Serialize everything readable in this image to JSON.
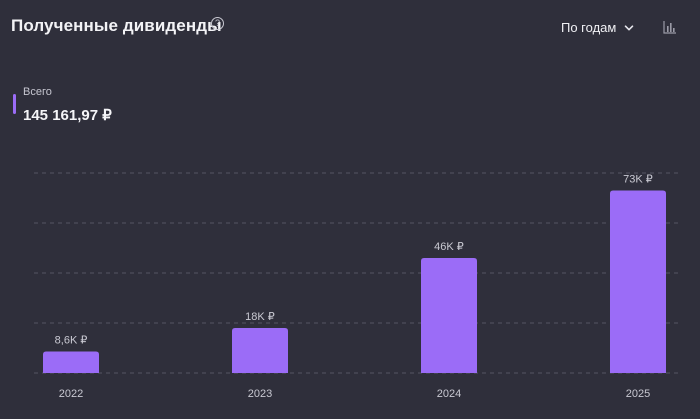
{
  "header": {
    "title": "Полученные дивиденды",
    "help_icon": "question-circle-icon",
    "period_label": "По годам",
    "period_icon": "chevron-down-icon",
    "chart_toggle_icon": "bar-chart-icon"
  },
  "summary": {
    "label": "Всего",
    "value": "145 161,97 ₽"
  },
  "colors": {
    "background": "#2f2f3b",
    "bar": "#9b6cf7",
    "grid": "#555563",
    "text": "#e6e6ec"
  },
  "chart_data": {
    "type": "bar",
    "categories": [
      "2022",
      "2023",
      "2024",
      "2025"
    ],
    "values": [
      8600,
      18000,
      46000,
      73000
    ],
    "data_labels": [
      "8,6K ₽",
      "18K ₽",
      "46K ₽",
      "73K ₽"
    ],
    "ylim": [
      0,
      80000
    ],
    "grid": true,
    "grid_style": "dashed",
    "xlabel": "",
    "ylabel": ""
  }
}
